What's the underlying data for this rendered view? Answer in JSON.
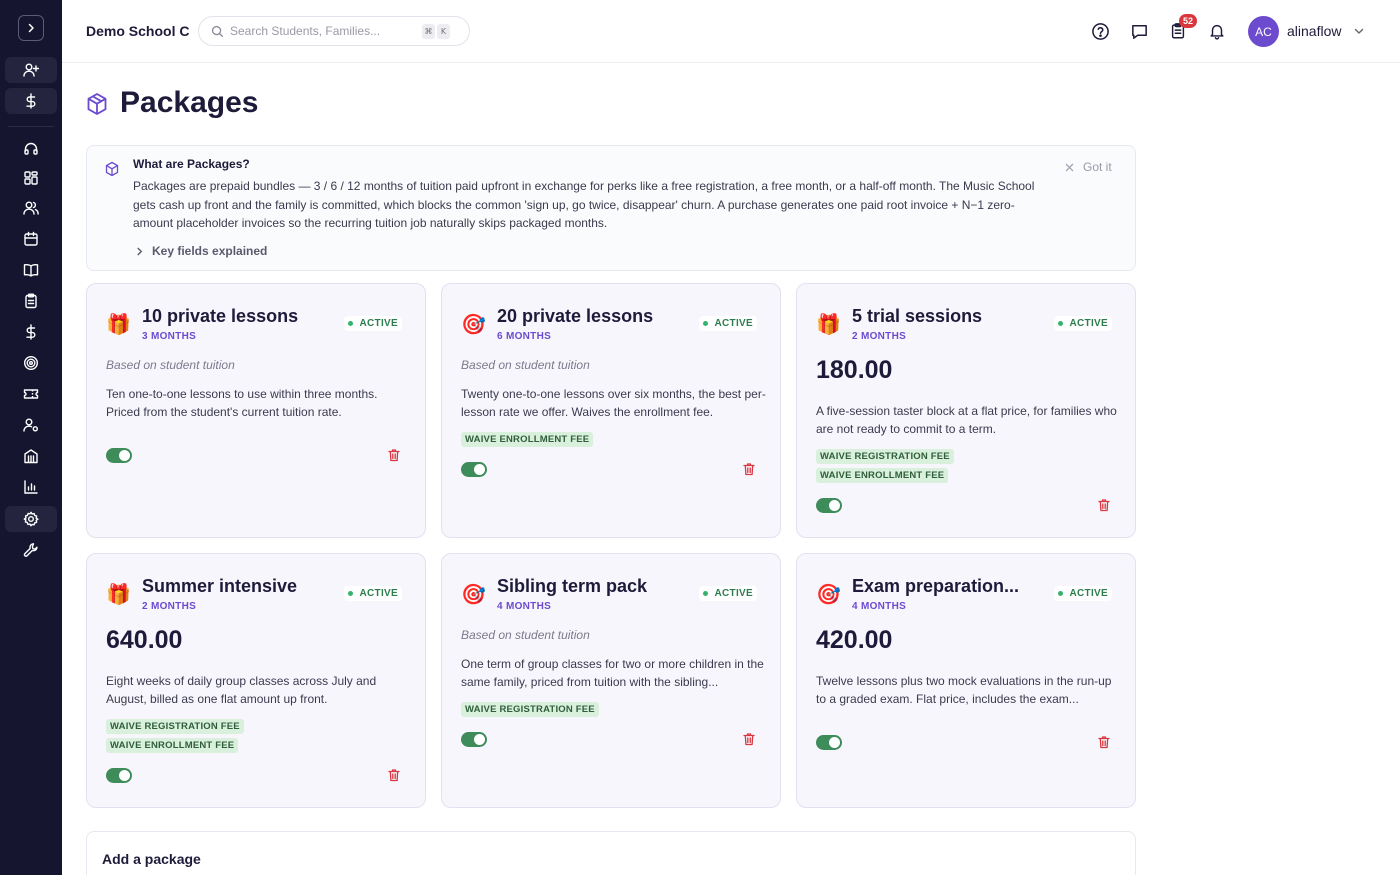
{
  "header": {
    "school_name": "Demo School C",
    "search_placeholder": "Search Students, Families...",
    "shortcut_keys": [
      "⌘",
      "K"
    ],
    "tasks_badge": "52",
    "user": {
      "initials": "AC",
      "name": "alinaflow"
    }
  },
  "sidebar": {
    "items": [
      "expand",
      "add-student",
      "billing",
      "support",
      "dashboard",
      "families",
      "calendar",
      "lessons",
      "attendance",
      "payments",
      "goals",
      "tickets",
      "staff",
      "rooms",
      "reports",
      "settings",
      "tools"
    ],
    "active": "settings"
  },
  "page": {
    "title": "Packages"
  },
  "info": {
    "title": "What are Packages?",
    "body": "Packages are prepaid bundles — 3 / 6 / 12 months of tuition paid upfront in exchange for perks like a free registration, a free month, or a half-off month. The Music School gets cash up front and the family is committed, which blocks the common 'sign up, go twice, disappear' churn. A purchase generates one paid root invoice + N−1 zero-amount placeholder invoices so the recurring tuition job naturally skips packaged months.",
    "dismiss_label": "Got it",
    "key_fields_label": "Key fields explained"
  },
  "packages": [
    {
      "emoji": "🎁",
      "name": "10 private lessons",
      "duration": "3 MONTHS",
      "status": "ACTIVE",
      "basis": "Based on student tuition",
      "price": "",
      "description": "Ten one-to-one lessons to use within three months. Priced from the student's current tuition rate.",
      "pills": [],
      "enabled": true
    },
    {
      "emoji": "🎯",
      "name": "20 private lessons",
      "duration": "6 MONTHS",
      "status": "ACTIVE",
      "basis": "Based on student tuition",
      "price": "",
      "description": "Twenty one-to-one lessons over six months, the best per-lesson rate we offer. Waives the enrollment fee.",
      "pills": [
        "WAIVE ENROLLMENT FEE"
      ],
      "enabled": true
    },
    {
      "emoji": "🎁",
      "name": "5 trial sessions",
      "duration": "2 MONTHS",
      "status": "ACTIVE",
      "basis": "",
      "price": "180.00",
      "description": "A five-session taster block at a flat price, for families who are not ready to commit to a term.",
      "pills": [
        "WAIVE REGISTRATION FEE",
        "WAIVE ENROLLMENT FEE"
      ],
      "enabled": true
    },
    {
      "emoji": "🎁",
      "name": "Summer intensive",
      "duration": "2 MONTHS",
      "status": "ACTIVE",
      "basis": "",
      "price": "640.00",
      "description": "Eight weeks of daily group classes across July and August, billed as one flat amount up front.",
      "pills": [
        "WAIVE REGISTRATION FEE",
        "WAIVE ENROLLMENT FEE"
      ],
      "enabled": true
    },
    {
      "emoji": "🎯",
      "name": "Sibling term pack",
      "duration": "4 MONTHS",
      "status": "ACTIVE",
      "basis": "Based on student tuition",
      "price": "",
      "description": "One term of group classes for two or more children in the same family, priced from tuition with the sibling...",
      "pills": [
        "WAIVE REGISTRATION FEE"
      ],
      "enabled": true
    },
    {
      "emoji": "🎯",
      "name": "Exam preparation...",
      "duration": "4 MONTHS",
      "status": "ACTIVE",
      "basis": "",
      "price": "420.00",
      "description": "Twelve lessons plus two mock evaluations in the run-up to a graded exam. Flat price, includes the exam...",
      "pills": [],
      "enabled": true
    }
  ],
  "add_package": {
    "label": "Add a package"
  },
  "colors": {
    "sidebar_bg": "#151530",
    "accent": "#6c4bcf",
    "active_green": "#37b26c",
    "toggle_green": "#3d8c5a",
    "trash_red": "#d9363e",
    "badge_red": "#d9363e"
  }
}
